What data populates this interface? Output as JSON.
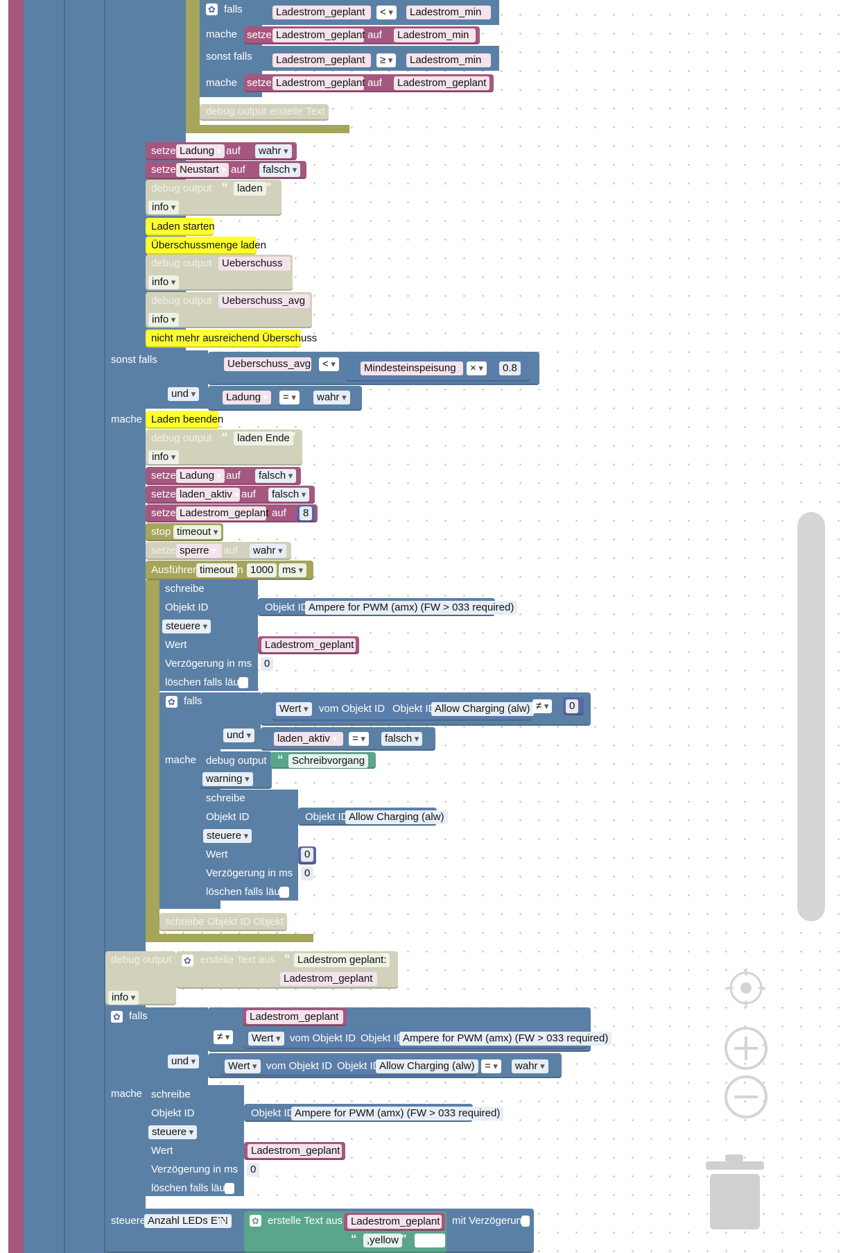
{
  "top": {
    "falls": "falls",
    "mache": "mache",
    "sonst_falls": "sonst falls",
    "var_geplant": "Ladestrom_geplant",
    "var_min": "Ladestrom_min",
    "op_lt": "<",
    "op_ge": "≥",
    "setze": "setze",
    "auf": "auf",
    "debug_text": "debug output erstelle Text"
  },
  "mid": {
    "setze": "setze",
    "auf": "auf",
    "ladung": "Ladung",
    "wahr": "wahr",
    "neustart": "Neustart",
    "falsch": "falsch",
    "debug": "debug output",
    "laden": "laden",
    "info": "info",
    "c1": "Laden starten",
    "c2": "Überschussmenge laden",
    "ueberschuss": "Ueberschuss",
    "ueberschuss_avg": "Ueberschuss_avg",
    "c3": "nicht mehr ausreichend Überschuss"
  },
  "cond": {
    "sonst_falls": "sonst falls",
    "ueberschuss_avg": "Ueberschuss_avg",
    "op_lt": "<",
    "mindest": "Mindesteinspeisung",
    "op_mul": "×",
    "factor": "0.8",
    "und": "und",
    "ladung": "Ladung",
    "op_eq": "=",
    "wahr": "wahr",
    "mache": "mache"
  },
  "end": {
    "c_beenden": "Laden beenden",
    "debug": "debug output",
    "laden_ende": "laden Ende",
    "info": "info",
    "setze": "setze",
    "auf": "auf",
    "ladung": "Ladung",
    "falsch": "falsch",
    "laden_aktiv": "laden_aktiv",
    "geplant": "Ladestrom_geplant",
    "eight": "8",
    "stop": "stop",
    "timeout": "timeout",
    "sperre": "sperre",
    "wahr": "wahr",
    "ausfuehren": "Ausführen",
    "in": "in",
    "ms_val": "1000",
    "ms": "ms"
  },
  "write1": {
    "schreibe": "schreibe",
    "objekt_id": "Objekt ID",
    "obj_prefix": "Objekt ID",
    "obj_name": "Ampere for PWM (amx) (FW > 033 required)",
    "steuere": "steuere",
    "wert": "Wert",
    "wert_var": "Ladestrom_geplant",
    "verz": "Verzögerung in ms",
    "verz_val": "0",
    "loeschen": "löschen falls läuft"
  },
  "inner": {
    "falls": "falls",
    "wert": "Wert",
    "vom_objekt": "vom Objekt ID",
    "obj_prefix": "Objekt ID",
    "allow": "Allow Charging (alw)",
    "op_ne": "≠",
    "zero": "0",
    "und": "und",
    "laden_aktiv": "laden_aktiv",
    "op_eq": "=",
    "falsch": "falsch",
    "mache": "mache",
    "debug": "debug output",
    "schreibvorgang": "Schreibvorgang",
    "warning": "warning",
    "schreibe": "schreibe",
    "objekt_id": "Objekt ID",
    "steuere": "steuere",
    "wert_label": "Wert",
    "wert_val": "0",
    "verz": "Verzögerung in ms",
    "verz_val": "0",
    "loeschen": "löschen falls läuft",
    "collapsed": "schreibe Objekt ID Objekt I..."
  },
  "lower": {
    "debug": "debug output",
    "erstelle": "erstelle Text aus",
    "geplant_txt": "Ladestrom geplant:",
    "geplant": "Ladestrom_geplant",
    "info": "info",
    "falls": "falls",
    "op_ne": "≠",
    "wert": "Wert",
    "vom_objekt": "vom Objekt ID",
    "obj_prefix": "Objekt ID",
    "ampere": "Ampere for PWM (amx) (FW > 033 required)",
    "und": "und",
    "allow": "Allow Charging (alw)",
    "op_eq": "=",
    "wahr": "wahr",
    "mache": "mache",
    "schreibe": "schreibe",
    "objekt_id": "Objekt ID",
    "steuere": "steuere",
    "wert_label": "Wert",
    "verz": "Verzögerung in ms",
    "verz_val": "0",
    "loeschen": "löschen falls läuft"
  },
  "bottom": {
    "steuere": "steuere",
    "leds": "Anzahl LEDs EIN",
    "mit": "mit",
    "erstelle": "erstelle Text aus",
    "geplant": "Ladestrom_geplant",
    "mit_verz": "mit Verzögerung",
    "yellow": ",yellow"
  },
  "controls": {
    "recenter": "recenter-icon",
    "zoom_in": "zoom-in-icon",
    "zoom_out": "zoom-out-icon",
    "trash": "trash-icon"
  }
}
